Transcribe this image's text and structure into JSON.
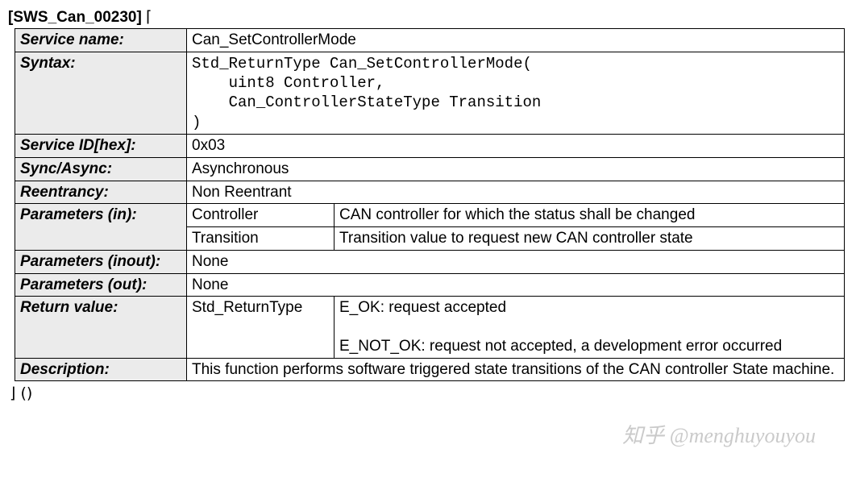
{
  "header": {
    "id": "[SWS_Can_00230]",
    "open_bracket": "⌈"
  },
  "rows": {
    "service_name": {
      "label": "Service name:",
      "value": "Can_SetControllerMode"
    },
    "syntax": {
      "label": "Syntax:",
      "code": "Std_ReturnType Can_SetControllerMode(\n    uint8 Controller,\n    Can_ControllerStateType Transition\n)"
    },
    "service_id": {
      "label": "Service ID[hex]:",
      "value": "0x03"
    },
    "sync_async": {
      "label": "Sync/Async:",
      "value": "Asynchronous"
    },
    "reentrancy": {
      "label": "Reentrancy:",
      "value": "Non Reentrant"
    },
    "params_in": {
      "label": "Parameters (in):",
      "p1": {
        "name": "Controller",
        "desc": "CAN controller for which the status shall be changed"
      },
      "p2": {
        "name": "Transition",
        "desc": "Transition value to request new CAN controller state"
      }
    },
    "params_inout": {
      "label": "Parameters (inout):",
      "value": "None"
    },
    "params_out": {
      "label": "Parameters (out):",
      "value": "None"
    },
    "return_value": {
      "label": "Return value:",
      "type": "Std_ReturnType",
      "desc_line1": "E_OK: request accepted",
      "desc_blank": " ",
      "desc_line2": "E_NOT_OK: request not accepted, a development error occurred"
    },
    "description": {
      "label": "Description:",
      "value": "This function performs software triggered state transitions of the CAN controller State machine."
    }
  },
  "footer": {
    "close": "⌋ ()"
  },
  "watermark": "知乎 @menghuyouyou"
}
